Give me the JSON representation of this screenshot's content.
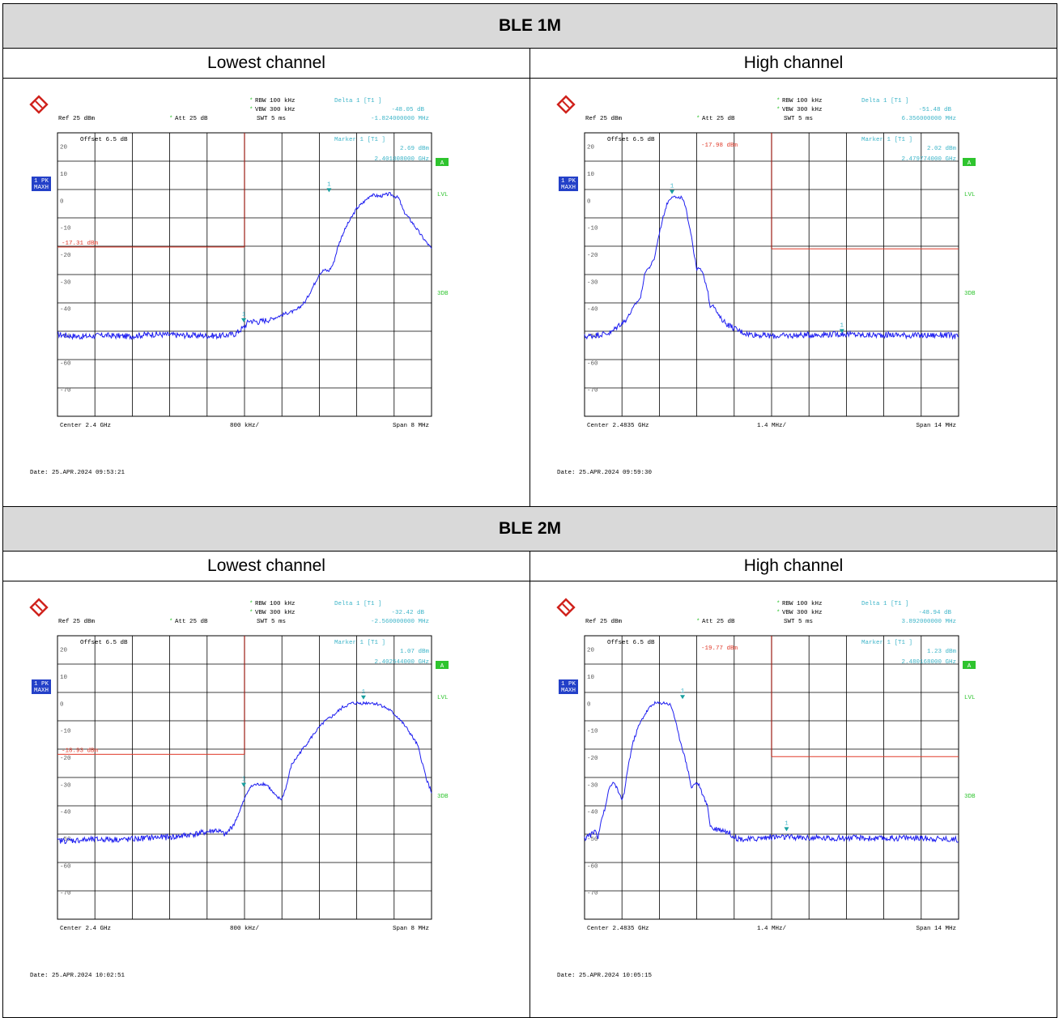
{
  "sections": [
    {
      "title": "BLE 1M",
      "left_label": "Lowest channel",
      "right_label": "High channel"
    },
    {
      "title": "BLE 2M",
      "left_label": "Lowest channel",
      "right_label": "High channel"
    }
  ],
  "chart_data": [
    {
      "type": "line",
      "id": "p1",
      "subtitle": "Lowest channel",
      "header": {
        "ref": "Ref  25 dBm",
        "att": "Att  25 dB",
        "offset": "Offset  6.5 dB",
        "rbw": "RBW  100 kHz",
        "vbw": "VBW  300 kHz",
        "swt": "SWT  5 ms",
        "delta_label": "Delta 1 [T1 ]",
        "delta_val": "-48.05 dB",
        "delta_freq": "-1.824000000 MHz",
        "marker_label": "Marker 1 [T1 ]",
        "marker_val": "2.69 dBm",
        "marker_freq": "2.401808000 GHz"
      },
      "trace_badge": [
        "1 PK",
        "MAXH"
      ],
      "side_labels": [
        "A",
        "LVL",
        "3DB"
      ],
      "display_line": "-17.31 dBm",
      "x_center_ghz": 2.4,
      "x_span_mhz": 8,
      "y_range_dbm": [
        -80,
        25
      ],
      "y_ticks": [
        "20",
        "10",
        "0",
        "-10",
        "-20",
        "-30",
        "-40",
        "-50",
        "-60",
        "-70"
      ],
      "footer": {
        "center": "Center  2.4 GHz",
        "div": "800 kHz/",
        "span": "Span  8 MHz"
      },
      "date": "Date: 25.APR.2024  09:53:21",
      "limit": {
        "level_dbm": -17.31,
        "boundary_ghz": 2.4,
        "side": "left",
        "label_visible": true
      },
      "marker1": {
        "x_ghz": 2.401808,
        "y_dbm": 2.69
      },
      "marker2": {
        "x_ghz": 2.399984,
        "y_dbm": -45.5
      },
      "trace": [
        [
          2.396,
          -49.7
        ],
        [
          2.3965,
          -50.5
        ],
        [
          2.397,
          -50.0
        ],
        [
          2.3975,
          -50.4
        ],
        [
          2.398,
          -49.6
        ],
        [
          2.3985,
          -49.9
        ],
        [
          2.399,
          -50.1
        ],
        [
          2.3995,
          -50.2
        ],
        [
          2.3998,
          -49.5
        ],
        [
          2.4,
          -46.8
        ],
        [
          2.4001,
          -44.5
        ],
        [
          2.4003,
          -45.0
        ],
        [
          2.4006,
          -43.8
        ],
        [
          2.4009,
          -41.8
        ],
        [
          2.4011,
          -40.9
        ],
        [
          2.4013,
          -37.5
        ],
        [
          2.4015,
          -30.8
        ],
        [
          2.4016,
          -27.2
        ],
        [
          2.4017,
          -25.8
        ],
        [
          2.4018,
          -26.2
        ],
        [
          2.4019,
          -23.5
        ],
        [
          2.402,
          -17.0
        ],
        [
          2.4021,
          -12.5
        ],
        [
          2.4022,
          -9.0
        ],
        [
          2.4024,
          -3.0
        ],
        [
          2.4026,
          0.2
        ],
        [
          2.4027,
          2.0
        ],
        [
          2.4029,
          1.5
        ],
        [
          2.4031,
          2.4
        ],
        [
          2.4033,
          0.8
        ],
        [
          2.4034,
          -4.0
        ],
        [
          2.4036,
          -8.5
        ],
        [
          2.4038,
          -13.5
        ],
        [
          2.404,
          -18.0
        ],
        [
          2.4042,
          -25.6
        ],
        [
          2.4043,
          -26.5
        ],
        [
          2.4045,
          -27.5
        ],
        [
          2.4047,
          -32.0
        ],
        [
          2.4048,
          -38.8
        ],
        [
          2.405,
          -39.6
        ],
        [
          2.4051,
          -38.3
        ],
        [
          2.4053,
          -40.6
        ],
        [
          2.4054,
          -44.5
        ],
        [
          2.4056,
          -46.0
        ],
        [
          2.4058,
          -45.6
        ],
        [
          2.406,
          -45.9
        ]
      ]
    },
    {
      "type": "line",
      "id": "p2",
      "subtitle": "High channel",
      "header": {
        "ref": "Ref  25 dBm",
        "att": "Att  25 dB",
        "offset": "Offset  6.5 dB",
        "rbw": "RBW  100 kHz",
        "vbw": "VBW  300 kHz",
        "swt": "SWT  5 ms",
        "delta_label": "Delta 1 [T1 ]",
        "delta_val": "-51.48 dB",
        "delta_freq": "6.356000000 MHz",
        "marker_label": "Marker 1 [T1 ]",
        "marker_val": "2.02 dBm",
        "marker_freq": "2.479774000 GHz"
      },
      "trace_badge": [
        "1 PK",
        "MAXH"
      ],
      "side_labels": [
        "A",
        "LVL",
        "3DB"
      ],
      "display_line": "-17.98 dBm",
      "x_center_ghz": 2.4835,
      "x_span_mhz": 14,
      "y_range_dbm": [
        -80,
        25
      ],
      "y_ticks": [
        "20",
        "10",
        "0",
        "-10",
        "-20",
        "-30",
        "-40",
        "-50",
        "-60",
        "-70"
      ],
      "footer": {
        "center": "Center  2.4835 GHz",
        "div": "1.4 MHz/",
        "span": "Span  14 MHz"
      },
      "date": "Date: 25.APR.2024  09:59:30",
      "limit": {
        "level_dbm": -17.98,
        "boundary_ghz": 2.4835,
        "side": "right",
        "label_visible": false
      },
      "marker1": {
        "x_ghz": 2.479774,
        "y_dbm": 2.02
      },
      "marker2": {
        "x_ghz": 2.48613,
        "y_dbm": -49.5
      },
      "trace": [
        [
          2.4765,
          -50.5
        ],
        [
          2.477,
          -49.8
        ],
        [
          2.4775,
          -49.0
        ],
        [
          2.4778,
          -46.0
        ],
        [
          2.478,
          -44.8
        ],
        [
          2.4782,
          -42.0
        ],
        [
          2.4784,
          -38.5
        ],
        [
          2.4786,
          -36.0
        ],
        [
          2.4787,
          -30.0
        ],
        [
          2.4788,
          -25.7
        ],
        [
          2.4789,
          -25.3
        ],
        [
          2.4791,
          -22.0
        ],
        [
          2.4793,
          -12.0
        ],
        [
          2.4795,
          -4.0
        ],
        [
          2.4796,
          -1.0
        ],
        [
          2.4797,
          0.7
        ],
        [
          2.4798,
          1.8
        ],
        [
          2.48,
          0.5
        ],
        [
          2.4801,
          1.3
        ],
        [
          2.4802,
          -0.2
        ],
        [
          2.4803,
          -3.5
        ],
        [
          2.4805,
          -13.0
        ],
        [
          2.4806,
          -20.0
        ],
        [
          2.4807,
          -25.5
        ],
        [
          2.4808,
          -25.3
        ],
        [
          2.4809,
          -26.4
        ],
        [
          2.4811,
          -33.0
        ],
        [
          2.4812,
          -39.5
        ],
        [
          2.4813,
          -38.3
        ],
        [
          2.4815,
          -42.5
        ],
        [
          2.4818,
          -45.6
        ],
        [
          2.4822,
          -48.0
        ],
        [
          2.4826,
          -49.5
        ],
        [
          2.4835,
          -50.3
        ],
        [
          2.4845,
          -50.0
        ],
        [
          2.4855,
          -49.7
        ],
        [
          2.4862,
          -49.5
        ],
        [
          2.487,
          -50.0
        ],
        [
          2.488,
          -49.8
        ],
        [
          2.489,
          -50.1
        ],
        [
          2.49,
          -49.9
        ],
        [
          2.4905,
          -50.5
        ]
      ]
    },
    {
      "type": "line",
      "id": "p3",
      "subtitle": "Lowest channel",
      "header": {
        "ref": "Ref  25 dBm",
        "att": "Att  25 dB",
        "offset": "Offset  6.5 dB",
        "rbw": "RBW  100 kHz",
        "vbw": "VBW  300 kHz",
        "swt": "SWT  5 ms",
        "delta_label": "Delta 1 [T1 ]",
        "delta_val": "-32.42 dB",
        "delta_freq": "-2.560000000 MHz",
        "marker_label": "Marker 1 [T1 ]",
        "marker_val": "1.07 dBm",
        "marker_freq": "2.402544000 GHz"
      },
      "trace_badge": [
        "1 PK",
        "MAXH"
      ],
      "side_labels": [
        "A",
        "LVL",
        "3DB"
      ],
      "display_line": "-18.93 dBm",
      "x_center_ghz": 2.4,
      "x_span_mhz": 8,
      "y_range_dbm": [
        -80,
        25
      ],
      "y_ticks": [
        "20",
        "10",
        "0",
        "-10",
        "-20",
        "-30",
        "-40",
        "-50",
        "-60",
        "-70"
      ],
      "footer": {
        "center": "Center  2.4 GHz",
        "div": "800 kHz/",
        "span": "Span  8 MHz"
      },
      "date": "Date: 25.APR.2024  10:02:51",
      "limit": {
        "level_dbm": -18.93,
        "boundary_ghz": 2.4,
        "side": "left",
        "label_visible": true
      },
      "marker1": {
        "x_ghz": 2.402544,
        "y_dbm": 1.07
      },
      "marker2": {
        "x_ghz": 2.399984,
        "y_dbm": -31.3
      },
      "trace": [
        [
          2.396,
          -51.0
        ],
        [
          2.3965,
          -50.7
        ],
        [
          2.397,
          -50.4
        ],
        [
          2.3975,
          -50.5
        ],
        [
          2.398,
          -49.8
        ],
        [
          2.3985,
          -49.5
        ],
        [
          2.399,
          -48.3
        ],
        [
          2.3994,
          -47.0
        ],
        [
          2.3996,
          -48.8
        ],
        [
          2.3998,
          -44.0
        ],
        [
          2.4,
          -35.5
        ],
        [
          2.4001,
          -31.5
        ],
        [
          2.4002,
          -30.3
        ],
        [
          2.4004,
          -29.8
        ],
        [
          2.4005,
          -30.5
        ],
        [
          2.4006,
          -33.0
        ],
        [
          2.4007,
          -35.0
        ],
        [
          2.4008,
          -35.5
        ],
        [
          2.4009,
          -30.5
        ],
        [
          2.401,
          -23.0
        ],
        [
          2.4012,
          -18.0
        ],
        [
          2.4015,
          -11.0
        ],
        [
          2.4017,
          -7.0
        ],
        [
          2.4019,
          -4.5
        ],
        [
          2.4021,
          -1.5
        ],
        [
          2.4023,
          0.0
        ],
        [
          2.4025,
          0.0
        ],
        [
          2.4027,
          0.2
        ],
        [
          2.4029,
          -0.5
        ],
        [
          2.4031,
          -2.5
        ],
        [
          2.4033,
          -5.5
        ],
        [
          2.4035,
          -10.0
        ],
        [
          2.4037,
          -15.5
        ],
        [
          2.4038,
          -22.0
        ],
        [
          2.4039,
          -28.5
        ],
        [
          2.404,
          -33.0
        ],
        [
          2.4041,
          -36.0
        ],
        [
          2.4042,
          -34.5
        ],
        [
          2.4044,
          -31.5
        ],
        [
          2.4046,
          -30.0
        ],
        [
          2.4048,
          -31.0
        ]
      ]
    },
    {
      "type": "line",
      "id": "p4",
      "subtitle": "High channel",
      "header": {
        "ref": "Ref  25 dBm",
        "att": "Att  25 dB",
        "offset": "Offset  6.5 dB",
        "rbw": "RBW  100 kHz",
        "vbw": "VBW  300 kHz",
        "swt": "SWT  5 ms",
        "delta_label": "Delta 1 [T1 ]",
        "delta_val": "-48.94 dB",
        "delta_freq": "3.892000000 MHz",
        "marker_label": "Marker 1 [T1 ]",
        "marker_val": "1.23 dBm",
        "marker_freq": "2.480168000 GHz"
      },
      "trace_badge": [
        "1 PK",
        "MAXH"
      ],
      "side_labels": [
        "A",
        "LVL",
        "3DB"
      ],
      "display_line": "-19.77 dBm",
      "x_center_ghz": 2.4835,
      "x_span_mhz": 14,
      "y_range_dbm": [
        -80,
        25
      ],
      "y_ticks": [
        "20",
        "10",
        "0",
        "-10",
        "-20",
        "-30",
        "-40",
        "-50",
        "-60",
        "-70"
      ],
      "footer": {
        "center": "Center  2.4835 GHz",
        "div": "1.4 MHz/",
        "span": "Span  14 MHz"
      },
      "date": "Date: 25.APR.2024  10:05:15",
      "limit": {
        "level_dbm": -19.77,
        "boundary_ghz": 2.4835,
        "side": "right",
        "label_visible": false
      },
      "marker1": {
        "x_ghz": 2.480168,
        "y_dbm": 1.23
      },
      "marker2": {
        "x_ghz": 2.48406,
        "y_dbm": -47.7
      },
      "trace": [
        [
          2.4765,
          -50.5
        ],
        [
          2.4766,
          -49.0
        ],
        [
          2.4768,
          -48.5
        ],
        [
          2.4769,
          -47.0
        ],
        [
          2.477,
          -49.5
        ],
        [
          2.4771,
          -44.0
        ],
        [
          2.4773,
          -38.0
        ],
        [
          2.4774,
          -32.0
        ],
        [
          2.4775,
          -30.0
        ],
        [
          2.4776,
          -29.8
        ],
        [
          2.4777,
          -31.0
        ],
        [
          2.4778,
          -34.0
        ],
        [
          2.4779,
          -35.5
        ],
        [
          2.478,
          -33.0
        ],
        [
          2.4781,
          -25.0
        ],
        [
          2.4783,
          -15.0
        ],
        [
          2.4785,
          -9.0
        ],
        [
          2.4787,
          -5.0
        ],
        [
          2.4789,
          -2.0
        ],
        [
          2.4791,
          0.0
        ],
        [
          2.4793,
          0.0
        ],
        [
          2.4795,
          0.2
        ],
        [
          2.4797,
          -0.5
        ],
        [
          2.4798,
          -2.5
        ],
        [
          2.4799,
          -6.5
        ],
        [
          2.48,
          -11.0
        ],
        [
          2.4802,
          -18.0
        ],
        [
          2.4804,
          -26.0
        ],
        [
          2.4805,
          -31.5
        ],
        [
          2.4806,
          -30.0
        ],
        [
          2.4807,
          -29.5
        ],
        [
          2.4808,
          -30.5
        ],
        [
          2.4809,
          -33.5
        ],
        [
          2.4811,
          -38.0
        ],
        [
          2.4812,
          -45.0
        ],
        [
          2.4813,
          -46.5
        ],
        [
          2.4815,
          -46.5
        ],
        [
          2.4817,
          -47.0
        ],
        [
          2.4819,
          -48.0
        ],
        [
          2.4822,
          -50.0
        ],
        [
          2.4826,
          -50.5
        ],
        [
          2.4835,
          -49.5
        ],
        [
          2.4845,
          -49.8
        ],
        [
          2.4855,
          -50.0
        ],
        [
          2.4865,
          -49.9
        ],
        [
          2.4875,
          -50.2
        ],
        [
          2.4885,
          -49.8
        ],
        [
          2.4895,
          -50.1
        ],
        [
          2.4905,
          -50.5
        ]
      ]
    }
  ],
  "colors": {
    "trace": "#1e1ef0",
    "limit_display_line": "#e03a2a",
    "limit_vertical_line": "#9b1d14",
    "annotation": "#3cb4c8",
    "badge_blue": "#2340c8",
    "badge_green": "#2ec42e",
    "grid": "#000000",
    "section_bg": "#d9d9d9"
  }
}
